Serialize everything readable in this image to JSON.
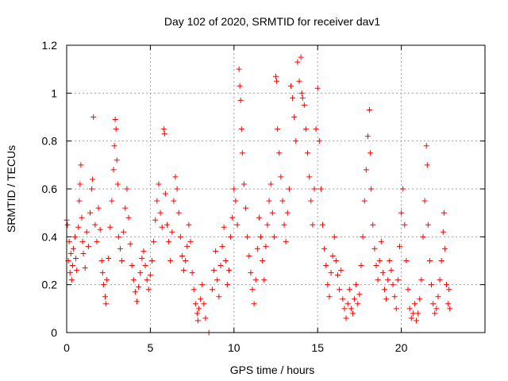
{
  "chart_data": {
    "type": "scatter",
    "title": "Day 102 of 2020, SRMTID for receiver dav1",
    "xlabel": "GPS time / hours",
    "ylabel": "SRMTID / TECUs",
    "xlim": [
      0,
      25
    ],
    "ylim": [
      0,
      1.2
    ],
    "xticks": [
      0,
      5,
      10,
      15,
      20
    ],
    "xtick_labels": [
      "0",
      "5",
      "10",
      "15",
      "20"
    ],
    "yticks": [
      0,
      0.2,
      0.4,
      0.6,
      0.8,
      1.0,
      1.2
    ],
    "ytick_labels": [
      "0",
      "0.2",
      "0.4",
      "0.6",
      "0.8",
      "1",
      "1.2"
    ],
    "grid": true,
    "marker": "plus",
    "color": "#ff0000",
    "series": [
      {
        "name": "SRMTID",
        "points": [
          [
            0.0,
            0.47
          ],
          [
            0.05,
            0.45
          ],
          [
            0.1,
            0.3
          ],
          [
            0.15,
            0.38
          ],
          [
            0.2,
            0.25
          ],
          [
            0.25,
            0.33
          ],
          [
            0.3,
            0.22
          ],
          [
            0.35,
            0.28
          ],
          [
            0.4,
            0.35
          ],
          [
            0.5,
            0.4
          ],
          [
            0.55,
            0.31
          ],
          [
            0.6,
            0.26
          ],
          [
            0.7,
            0.44
          ],
          [
            0.75,
            0.55
          ],
          [
            0.8,
            0.62
          ],
          [
            0.85,
            0.7
          ],
          [
            0.9,
            0.48
          ],
          [
            0.95,
            0.38
          ],
          [
            1.0,
            0.33
          ],
          [
            1.1,
            0.27
          ],
          [
            1.2,
            0.42
          ],
          [
            1.3,
            0.36
          ],
          [
            1.4,
            0.5
          ],
          [
            1.5,
            0.6
          ],
          [
            1.55,
            0.64
          ],
          [
            1.6,
            0.9
          ],
          [
            1.7,
            0.45
          ],
          [
            1.8,
            0.38
          ],
          [
            1.9,
            0.52
          ],
          [
            2.0,
            0.43
          ],
          [
            2.1,
            0.3
          ],
          [
            2.15,
            0.25
          ],
          [
            2.2,
            0.2
          ],
          [
            2.3,
            0.15
          ],
          [
            2.35,
            0.12
          ],
          [
            2.4,
            0.22
          ],
          [
            2.5,
            0.31
          ],
          [
            2.6,
            0.44
          ],
          [
            2.7,
            0.55
          ],
          [
            2.8,
            0.68
          ],
          [
            2.85,
            0.78
          ],
          [
            2.9,
            0.89
          ],
          [
            2.95,
            0.85
          ],
          [
            3.0,
            0.72
          ],
          [
            3.05,
            0.62
          ],
          [
            3.1,
            0.4
          ],
          [
            3.2,
            0.35
          ],
          [
            3.3,
            0.3
          ],
          [
            3.4,
            0.42
          ],
          [
            3.5,
            0.52
          ],
          [
            3.6,
            0.6
          ],
          [
            3.7,
            0.48
          ],
          [
            3.8,
            0.37
          ],
          [
            3.9,
            0.28
          ],
          [
            4.0,
            0.22
          ],
          [
            4.1,
            0.17
          ],
          [
            4.2,
            0.13
          ],
          [
            4.3,
            0.19
          ],
          [
            4.4,
            0.25
          ],
          [
            4.5,
            0.31
          ],
          [
            4.6,
            0.34
          ],
          [
            4.7,
            0.28
          ],
          [
            4.8,
            0.22
          ],
          [
            4.9,
            0.18
          ],
          [
            5.0,
            0.24
          ],
          [
            5.1,
            0.3
          ],
          [
            5.2,
            0.38
          ],
          [
            5.3,
            0.47
          ],
          [
            5.4,
            0.55
          ],
          [
            5.5,
            0.62
          ],
          [
            5.6,
            0.5
          ],
          [
            5.7,
            0.44
          ],
          [
            5.8,
            0.85
          ],
          [
            5.85,
            0.83
          ],
          [
            5.9,
            0.58
          ],
          [
            6.0,
            0.45
          ],
          [
            6.1,
            0.38
          ],
          [
            6.2,
            0.3
          ],
          [
            6.3,
            0.42
          ],
          [
            6.4,
            0.55
          ],
          [
            6.5,
            0.65
          ],
          [
            6.6,
            0.6
          ],
          [
            6.7,
            0.5
          ],
          [
            6.8,
            0.4
          ],
          [
            6.9,
            0.32
          ],
          [
            7.0,
            0.26
          ],
          [
            7.1,
            0.3
          ],
          [
            7.2,
            0.36
          ],
          [
            7.3,
            0.45
          ],
          [
            7.4,
            0.38
          ],
          [
            7.5,
            0.25
          ],
          [
            7.6,
            0.18
          ],
          [
            7.7,
            0.12
          ],
          [
            7.8,
            0.08
          ],
          [
            7.85,
            0.05
          ],
          [
            7.9,
            0.1
          ],
          [
            8.0,
            0.14
          ],
          [
            8.1,
            0.2
          ],
          [
            8.2,
            0.12
          ],
          [
            8.3,
            0.06
          ],
          [
            8.5,
            0.0
          ],
          [
            8.7,
            0.18
          ],
          [
            8.8,
            0.26
          ],
          [
            8.9,
            0.34
          ],
          [
            9.0,
            0.22
          ],
          [
            9.1,
            0.15
          ],
          [
            9.2,
            0.28
          ],
          [
            9.3,
            0.36
          ],
          [
            9.4,
            0.44
          ],
          [
            9.5,
            0.3
          ],
          [
            9.6,
            0.2
          ],
          [
            9.7,
            0.26
          ],
          [
            9.8,
            0.4
          ],
          [
            9.9,
            0.48
          ],
          [
            10.0,
            0.6
          ],
          [
            10.1,
            0.55
          ],
          [
            10.2,
            0.45
          ],
          [
            10.3,
            1.1
          ],
          [
            10.35,
            1.03
          ],
          [
            10.4,
            0.97
          ],
          [
            10.45,
            0.85
          ],
          [
            10.5,
            0.75
          ],
          [
            10.6,
            0.62
          ],
          [
            10.7,
            0.52
          ],
          [
            10.8,
            0.4
          ],
          [
            10.9,
            0.32
          ],
          [
            11.0,
            0.25
          ],
          [
            11.1,
            0.18
          ],
          [
            11.2,
            0.12
          ],
          [
            11.3,
            0.22
          ],
          [
            11.4,
            0.35
          ],
          [
            11.5,
            0.48
          ],
          [
            11.6,
            0.4
          ],
          [
            11.7,
            0.3
          ],
          [
            11.8,
            0.22
          ],
          [
            11.9,
            0.36
          ],
          [
            12.0,
            0.45
          ],
          [
            12.1,
            0.55
          ],
          [
            12.2,
            0.62
          ],
          [
            12.3,
            0.5
          ],
          [
            12.4,
            0.4
          ],
          [
            12.5,
            1.07
          ],
          [
            12.55,
            1.05
          ],
          [
            12.6,
            0.85
          ],
          [
            12.7,
            0.75
          ],
          [
            12.8,
            0.65
          ],
          [
            12.9,
            0.55
          ],
          [
            13.0,
            0.45
          ],
          [
            13.1,
            0.38
          ],
          [
            13.2,
            0.5
          ],
          [
            13.3,
            0.6
          ],
          [
            13.4,
            1.03
          ],
          [
            13.5,
            0.98
          ],
          [
            13.6,
            0.9
          ],
          [
            13.7,
            0.8
          ],
          [
            13.8,
            1.13
          ],
          [
            13.9,
            1.05
          ],
          [
            14.0,
            1.15
          ],
          [
            14.05,
            1.0
          ],
          [
            14.1,
            0.98
          ],
          [
            14.2,
            0.95
          ],
          [
            14.3,
            0.85
          ],
          [
            14.4,
            0.75
          ],
          [
            14.5,
            0.65
          ],
          [
            14.6,
            0.55
          ],
          [
            14.7,
            0.45
          ],
          [
            14.8,
            0.6
          ],
          [
            14.9,
            0.85
          ],
          [
            15.0,
            1.02
          ],
          [
            15.1,
            0.8
          ],
          [
            15.2,
            0.6
          ],
          [
            15.3,
            0.45
          ],
          [
            15.4,
            0.35
          ],
          [
            15.5,
            0.28
          ],
          [
            15.6,
            0.2
          ],
          [
            15.7,
            0.15
          ],
          [
            15.8,
            0.25
          ],
          [
            15.9,
            0.32
          ],
          [
            16.0,
            0.4
          ],
          [
            16.1,
            0.3
          ],
          [
            16.2,
            0.24
          ],
          [
            16.3,
            0.18
          ],
          [
            16.4,
            0.26
          ],
          [
            16.5,
            0.14
          ],
          [
            16.6,
            0.1
          ],
          [
            16.7,
            0.06
          ],
          [
            16.8,
            0.12
          ],
          [
            16.9,
            0.18
          ],
          [
            17.0,
            0.1
          ],
          [
            17.1,
            0.08
          ],
          [
            17.2,
            0.14
          ],
          [
            17.3,
            0.2
          ],
          [
            17.4,
            0.12
          ],
          [
            17.5,
            0.16
          ],
          [
            17.6,
            0.28
          ],
          [
            17.7,
            0.4
          ],
          [
            17.8,
            0.55
          ],
          [
            17.9,
            0.68
          ],
          [
            18.0,
            0.82
          ],
          [
            18.1,
            0.93
          ],
          [
            18.15,
            0.75
          ],
          [
            18.2,
            0.6
          ],
          [
            18.3,
            0.45
          ],
          [
            18.4,
            0.35
          ],
          [
            18.5,
            0.28
          ],
          [
            18.6,
            0.22
          ],
          [
            18.7,
            0.3
          ],
          [
            18.8,
            0.38
          ],
          [
            18.9,
            0.25
          ],
          [
            19.0,
            0.18
          ],
          [
            19.1,
            0.14
          ],
          [
            19.2,
            0.22
          ],
          [
            19.3,
            0.3
          ],
          [
            19.4,
            0.26
          ],
          [
            19.5,
            0.2
          ],
          [
            19.6,
            0.15
          ],
          [
            19.7,
            0.1
          ],
          [
            19.8,
            0.22
          ],
          [
            19.9,
            0.36
          ],
          [
            20.0,
            0.5
          ],
          [
            20.1,
            0.6
          ],
          [
            20.2,
            0.45
          ],
          [
            20.3,
            0.3
          ],
          [
            20.4,
            0.18
          ],
          [
            20.5,
            0.1
          ],
          [
            20.6,
            0.06
          ],
          [
            20.7,
            0.08
          ],
          [
            20.8,
            0.12
          ],
          [
            20.9,
            0.05
          ],
          [
            21.0,
            0.08
          ],
          [
            21.1,
            0.14
          ],
          [
            21.2,
            0.22
          ],
          [
            21.3,
            0.4
          ],
          [
            21.4,
            0.55
          ],
          [
            21.5,
            0.78
          ],
          [
            21.55,
            0.7
          ],
          [
            21.6,
            0.45
          ],
          [
            21.7,
            0.3
          ],
          [
            21.8,
            0.2
          ],
          [
            21.9,
            0.12
          ],
          [
            22.0,
            0.08
          ],
          [
            22.1,
            0.1
          ],
          [
            22.2,
            0.15
          ],
          [
            22.3,
            0.22
          ],
          [
            22.4,
            0.3
          ],
          [
            22.5,
            0.42
          ],
          [
            22.55,
            0.5
          ],
          [
            22.6,
            0.35
          ],
          [
            22.7,
            0.2
          ],
          [
            22.8,
            0.12
          ],
          [
            22.85,
            0.18
          ],
          [
            22.9,
            0.1
          ]
        ]
      }
    ]
  }
}
